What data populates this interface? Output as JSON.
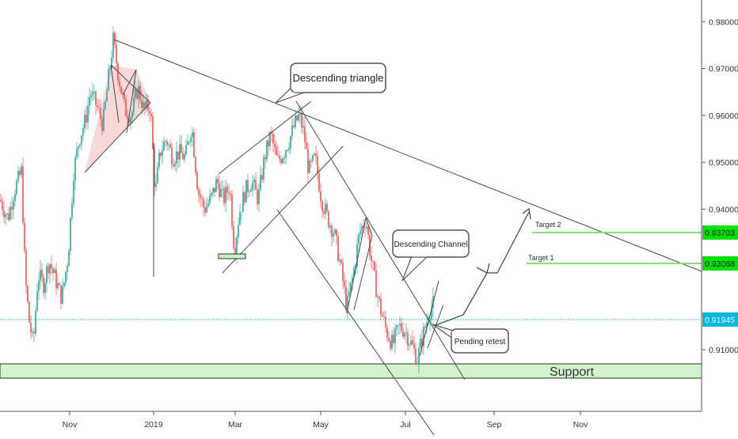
{
  "chart_data": {
    "type": "candlestick",
    "title": "",
    "xlabel": "",
    "ylabel": "",
    "ylim": [
      0.8918,
      0.9846
    ],
    "x_ticks": [
      "Nov",
      "2019",
      "Mar",
      "May",
      "Jul",
      "Sep",
      "Nov"
    ],
    "y_ticks": [
      "0.98000",
      "0.97000",
      "0.96000",
      "0.95000",
      "0.94000",
      "0.91000"
    ],
    "y_tick_values": [
      0.98,
      0.97,
      0.96,
      0.95,
      0.94,
      0.91
    ],
    "price_path": [
      [
        0,
        0.942
      ],
      [
        10,
        0.938
      ],
      [
        18,
        0.944
      ],
      [
        27,
        0.948
      ],
      [
        32,
        0.925
      ],
      [
        37,
        0.916
      ],
      [
        42,
        0.911
      ],
      [
        48,
        0.926
      ],
      [
        55,
        0.924
      ],
      [
        62,
        0.929
      ],
      [
        70,
        0.925
      ],
      [
        78,
        0.921
      ],
      [
        86,
        0.93
      ],
      [
        93,
        0.948
      ],
      [
        100,
        0.955
      ],
      [
        108,
        0.959
      ],
      [
        114,
        0.965
      ],
      [
        122,
        0.962
      ],
      [
        130,
        0.958
      ],
      [
        137,
        0.968
      ],
      [
        143,
        0.976
      ],
      [
        150,
        0.968
      ],
      [
        158,
        0.961
      ],
      [
        166,
        0.96
      ],
      [
        174,
        0.966
      ],
      [
        182,
        0.961
      ],
      [
        190,
        0.962
      ],
      [
        196,
        0.943
      ],
      [
        202,
        0.952
      ],
      [
        210,
        0.955
      ],
      [
        218,
        0.951
      ],
      [
        226,
        0.952
      ],
      [
        234,
        0.951
      ],
      [
        242,
        0.958
      ],
      [
        250,
        0.944
      ],
      [
        258,
        0.94
      ],
      [
        266,
        0.942
      ],
      [
        274,
        0.946
      ],
      [
        282,
        0.942
      ],
      [
        290,
        0.945
      ],
      [
        296,
        0.931
      ],
      [
        302,
        0.939
      ],
      [
        310,
        0.944
      ],
      [
        318,
        0.946
      ],
      [
        326,
        0.942
      ],
      [
        334,
        0.951
      ],
      [
        342,
        0.956
      ],
      [
        350,
        0.95
      ],
      [
        358,
        0.952
      ],
      [
        366,
        0.955
      ],
      [
        372,
        0.958
      ],
      [
        378,
        0.96
      ],
      [
        384,
        0.956
      ],
      [
        390,
        0.948
      ],
      [
        398,
        0.951
      ],
      [
        406,
        0.942
      ],
      [
        414,
        0.938
      ],
      [
        422,
        0.935
      ],
      [
        430,
        0.928
      ],
      [
        438,
        0.919
      ],
      [
        446,
        0.926
      ],
      [
        454,
        0.935
      ],
      [
        462,
        0.938
      ],
      [
        468,
        0.93
      ],
      [
        474,
        0.924
      ],
      [
        480,
        0.919
      ],
      [
        488,
        0.914
      ],
      [
        496,
        0.911
      ],
      [
        504,
        0.915
      ],
      [
        512,
        0.914
      ],
      [
        520,
        0.911
      ],
      [
        527,
        0.908
      ],
      [
        534,
        0.913
      ],
      [
        542,
        0.918
      ],
      [
        548,
        0.92
      ]
    ],
    "annotations": [
      {
        "text": "Descending triangle"
      },
      {
        "text": "Descending Channel"
      },
      {
        "text": "Pending retest"
      },
      {
        "text": "Support"
      },
      {
        "text": "Target 2",
        "value": 0.93703,
        "value_label": "0.93703"
      },
      {
        "text": "Target 1",
        "value": 0.93068,
        "value_label": "0.93068"
      },
      {
        "text": "",
        "value": 0.91945,
        "value_label": "0.91945"
      }
    ],
    "support_zone": [
      0.9079,
      0.9106
    ],
    "grid": false,
    "colors": {
      "up": "#26a69a",
      "down": "#ef5350",
      "trendline": "#4a4a4a",
      "target_line": "#85e07a",
      "target_badge": "#00e000",
      "support_fill": "#d3f2cd",
      "support_stroke": "#1e3d18",
      "current_price_line": "#00b0c8",
      "current_price_badge": "#00b7e0",
      "pattern_fill": "#f7d1d1"
    }
  }
}
